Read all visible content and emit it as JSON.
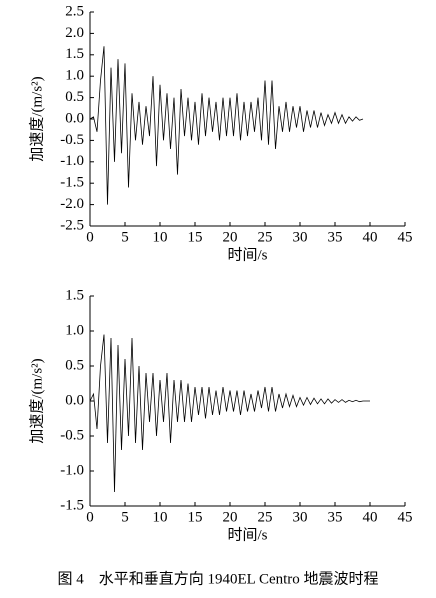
{
  "chart_data": [
    {
      "type": "line",
      "color": "#000000",
      "xlabel": "时间/s",
      "ylabel": "加速度/(m/s²)",
      "xlim": [
        0,
        45
      ],
      "xticks": [
        0,
        5,
        10,
        15,
        20,
        25,
        30,
        35,
        40,
        45
      ],
      "ylim": [
        -2.5,
        2.5
      ],
      "yticks": [
        {
          "value": -2.5,
          "label": "-2.5"
        },
        {
          "value": -2.0,
          "label": "-2.0"
        },
        {
          "value": -1.5,
          "label": "-1.5"
        },
        {
          "value": -1.0,
          "label": "-1.0"
        },
        {
          "value": -0.5,
          "label": "-0.5"
        },
        {
          "value": 0,
          "label": "0.0"
        },
        {
          "value": 0.5,
          "label": "0.5"
        },
        {
          "value": 1.0,
          "label": "1.0"
        },
        {
          "value": 1.5,
          "label": "1.5"
        },
        {
          "value": 2.0,
          "label": "2.0"
        },
        {
          "value": 2.5,
          "label": "2.5"
        }
      ],
      "x": [
        0,
        0.5,
        1,
        1.5,
        2,
        2.5,
        3,
        3.5,
        4,
        4.5,
        5,
        5.5,
        6,
        6.5,
        7,
        7.5,
        8,
        8.5,
        9,
        9.5,
        10,
        10.5,
        11,
        11.5,
        12,
        12.5,
        13,
        13.5,
        14,
        14.5,
        15,
        15.5,
        16,
        16.5,
        17,
        17.5,
        18,
        18.5,
        19,
        19.5,
        20,
        20.5,
        21,
        21.5,
        22,
        22.5,
        23,
        23.5,
        24,
        24.5,
        25,
        25.5,
        26,
        26.5,
        27,
        27.5,
        28,
        28.5,
        29,
        29.5,
        30,
        30.5,
        31,
        31.5,
        32,
        32.5,
        33,
        33.5,
        34,
        34.5,
        35,
        35.5,
        36,
        36.5,
        37,
        37.5,
        38,
        38.5,
        39
      ],
      "values": [
        0,
        0.05,
        -0.3,
        0.9,
        1.7,
        -2.0,
        1.2,
        -1.0,
        1.4,
        -0.8,
        1.3,
        -1.6,
        0.6,
        -0.5,
        0.4,
        -0.6,
        0.3,
        -0.4,
        1.0,
        -1.1,
        0.8,
        -0.5,
        0.6,
        -0.7,
        0.5,
        -1.3,
        0.7,
        -0.4,
        0.5,
        -0.5,
        0.4,
        -0.6,
        0.6,
        -0.4,
        0.5,
        -0.3,
        0.4,
        -0.5,
        0.5,
        -0.4,
        0.5,
        -0.4,
        0.6,
        -0.5,
        0.4,
        -0.4,
        0.4,
        -0.3,
        0.5,
        -0.5,
        0.9,
        -0.6,
        0.9,
        -0.7,
        0.3,
        -0.3,
        0.4,
        -0.3,
        0.3,
        -0.2,
        0.3,
        -0.3,
        0.2,
        -0.2,
        0.2,
        -0.2,
        0.15,
        -0.15,
        0.1,
        -0.1,
        0.15,
        -0.1,
        0.1,
        -0.1,
        0.05,
        -0.05,
        0.05,
        -0.03,
        0
      ]
    },
    {
      "type": "line",
      "color": "#000000",
      "xlabel": "时间/s",
      "ylabel": "加速度/(m/s²)",
      "xlim": [
        0,
        45
      ],
      "xticks": [
        0,
        5,
        10,
        15,
        20,
        25,
        30,
        35,
        40,
        45
      ],
      "ylim": [
        -1.5,
        1.5
      ],
      "yticks": [
        {
          "value": -1.5,
          "label": "-1.5"
        },
        {
          "value": -1.0,
          "label": "-1.0"
        },
        {
          "value": -0.5,
          "label": "-0.5"
        },
        {
          "value": 0,
          "label": "0.0"
        },
        {
          "value": 0.5,
          "label": "0.5"
        },
        {
          "value": 1.0,
          "label": "1.0"
        },
        {
          "value": 1.5,
          "label": "1.5"
        }
      ],
      "x": [
        0,
        0.5,
        1,
        1.5,
        2,
        2.5,
        3,
        3.5,
        4,
        4.5,
        5,
        5.5,
        6,
        6.5,
        7,
        7.5,
        8,
        8.5,
        9,
        9.5,
        10,
        10.5,
        11,
        11.5,
        12,
        12.5,
        13,
        13.5,
        14,
        14.5,
        15,
        15.5,
        16,
        16.5,
        17,
        17.5,
        18,
        18.5,
        19,
        19.5,
        20,
        20.5,
        21,
        21.5,
        22,
        22.5,
        23,
        23.5,
        24,
        24.5,
        25,
        25.5,
        26,
        26.5,
        27,
        27.5,
        28,
        28.5,
        29,
        29.5,
        30,
        30.5,
        31,
        31.5,
        32,
        32.5,
        33,
        33.5,
        34,
        34.5,
        35,
        35.5,
        36,
        36.5,
        37,
        37.5,
        38,
        38.5,
        39,
        39.5,
        40
      ],
      "values": [
        0,
        0.1,
        -0.4,
        0.5,
        0.95,
        -0.6,
        0.9,
        -1.3,
        0.8,
        -0.7,
        0.6,
        -0.5,
        0.9,
        -0.6,
        0.5,
        -0.7,
        0.4,
        -0.3,
        0.4,
        -0.5,
        0.3,
        -0.3,
        0.4,
        -0.6,
        0.3,
        -0.3,
        0.3,
        -0.3,
        0.25,
        -0.3,
        0.2,
        -0.2,
        0.2,
        -0.25,
        0.2,
        -0.2,
        0.15,
        -0.2,
        0.2,
        -0.15,
        0.15,
        -0.15,
        0.15,
        -0.2,
        0.15,
        -0.15,
        0.1,
        -0.15,
        0.15,
        -0.1,
        0.2,
        -0.15,
        0.2,
        -0.15,
        0.1,
        -0.1,
        0.1,
        -0.08,
        0.08,
        -0.08,
        0.05,
        -0.06,
        0.05,
        -0.05,
        0.04,
        -0.04,
        0.03,
        -0.04,
        0.03,
        -0.03,
        0.02,
        -0.02,
        0.02,
        -0.02,
        0.01,
        -0.01,
        0.01,
        -0.01,
        0,
        0,
        0
      ]
    }
  ],
  "caption": "图 4　水平和垂直方向 1940EL Centro 地震波时程"
}
